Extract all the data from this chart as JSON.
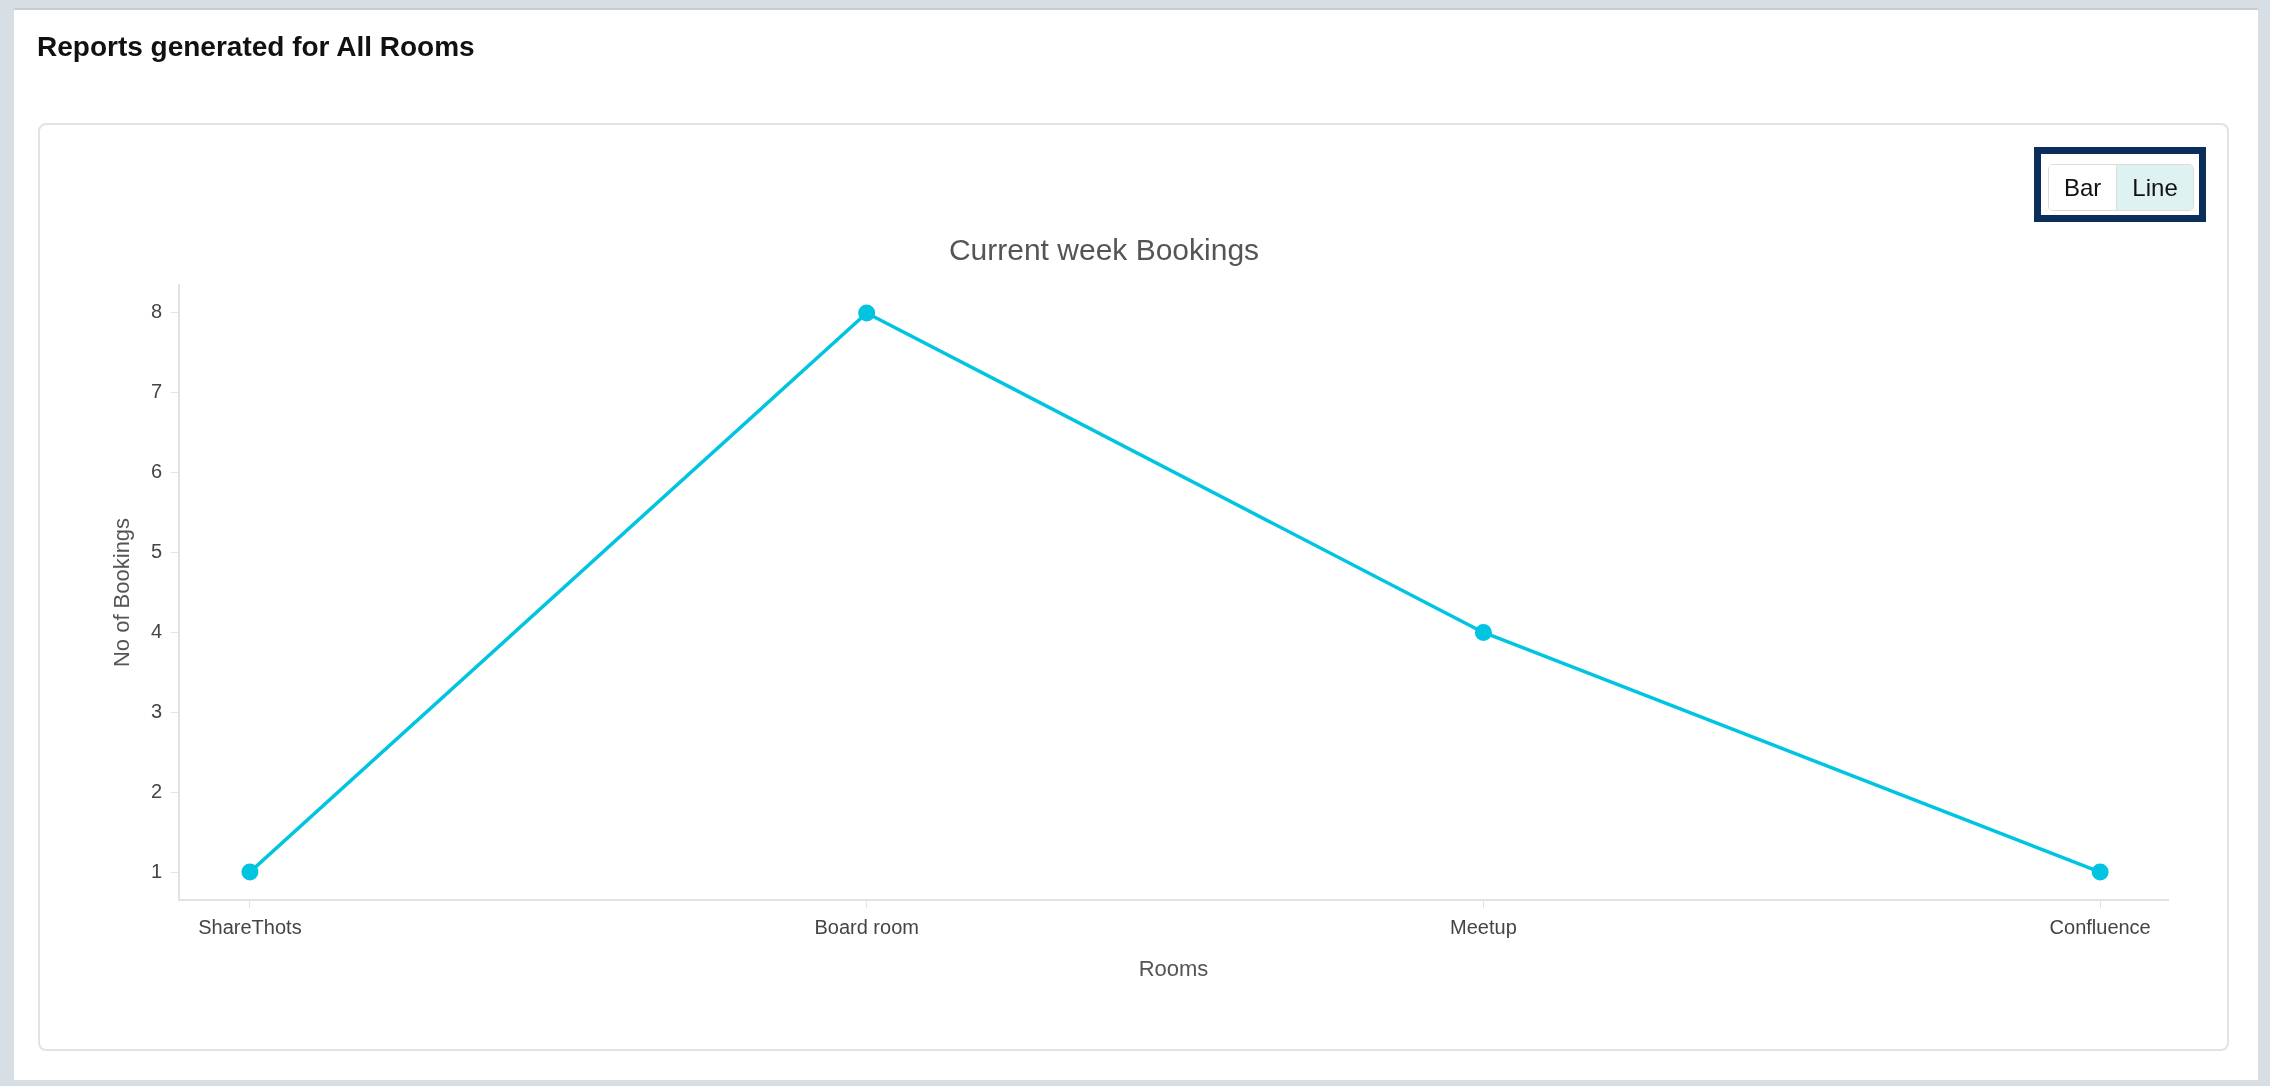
{
  "chart_data": {
    "type": "line",
    "title": "Reports generated for All Rooms",
    "subtitle": "Current week Bookings",
    "xlabel": "Rooms",
    "ylabel": "No of Bookings",
    "categories": [
      "ShareThots",
      "Board room",
      "Meetup",
      "Confluence"
    ],
    "values": [
      1,
      8,
      4,
      1
    ],
    "color": "#00c4e0",
    "ylim": [
      0.65,
      8.35
    ],
    "yticks": [
      1,
      2,
      3,
      4,
      5,
      6,
      7,
      8
    ],
    "marker": "circle",
    "line_style": "solid",
    "annotations": [
      "Bar",
      "Line"
    ]
  }
}
